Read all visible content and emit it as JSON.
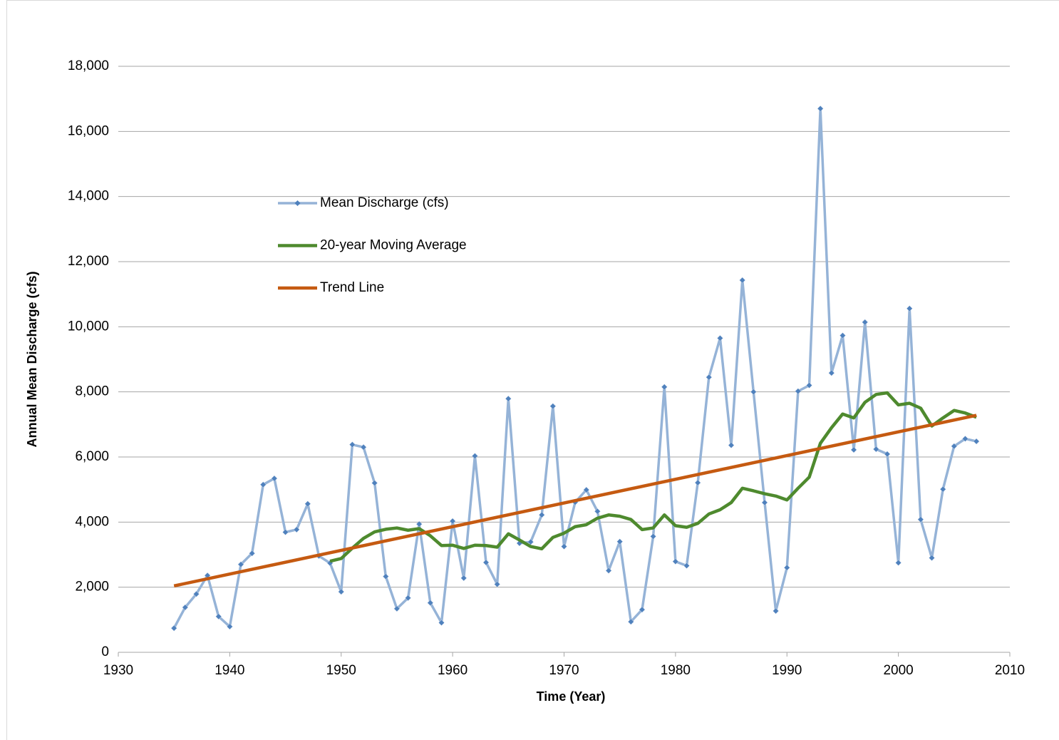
{
  "chart_data": {
    "type": "line",
    "xlabel": "Time (Year)",
    "ylabel": "Annual Mean Discharge (cfs)",
    "x": [
      1935,
      1936,
      1937,
      1938,
      1939,
      1940,
      1941,
      1942,
      1943,
      1944,
      1945,
      1946,
      1947,
      1948,
      1949,
      1950,
      1951,
      1952,
      1953,
      1954,
      1955,
      1956,
      1957,
      1958,
      1959,
      1960,
      1961,
      1962,
      1963,
      1964,
      1965,
      1966,
      1967,
      1968,
      1969,
      1970,
      1971,
      1972,
      1973,
      1974,
      1975,
      1976,
      1977,
      1978,
      1979,
      1980,
      1981,
      1982,
      1983,
      1984,
      1985,
      1986,
      1987,
      1988,
      1989,
      1990,
      1991,
      1992,
      1993,
      1994,
      1995,
      1996,
      1997,
      1998,
      1999,
      2000,
      2001,
      2002,
      2003,
      2004,
      2005,
      2006,
      2007
    ],
    "series": [
      {
        "name": "Mean Discharge (cfs)",
        "color": "#95b3d7",
        "marker_color": "#4f81bd",
        "marker": "diamond",
        "values": [
          742,
          1380,
          1790,
          2360,
          1100,
          790,
          2700,
          3040,
          5150,
          5340,
          3690,
          3770,
          4560,
          2960,
          2740,
          1860,
          6380,
          6300,
          5200,
          2330,
          1340,
          1670,
          3940,
          1520,
          910,
          4030,
          2280,
          6030,
          2760,
          2090,
          7790,
          3350,
          3390,
          4220,
          7560,
          3250,
          4610,
          4990,
          4330,
          2510,
          3400,
          940,
          1310,
          3560,
          8150,
          2790,
          2660,
          5210,
          8450,
          9650,
          6360,
          11430,
          8000,
          4600,
          1270,
          2600,
          8020,
          8200,
          16700,
          8580,
          9730,
          6220,
          10140,
          6240,
          6090,
          2750,
          10560,
          4080,
          2900,
          5010,
          6330,
          6560,
          6480
        ]
      },
      {
        "name": "20-year Moving Average",
        "color": "#4e8a2e",
        "values": [
          null,
          null,
          null,
          null,
          null,
          null,
          null,
          null,
          null,
          null,
          null,
          null,
          null,
          null,
          2800,
          2880,
          3200,
          3500,
          3700,
          3780,
          3820,
          3750,
          3800,
          3580,
          3280,
          3290,
          3190,
          3290,
          3280,
          3230,
          3640,
          3450,
          3250,
          3180,
          3530,
          3660,
          3860,
          3920,
          4120,
          4220,
          4180,
          4080,
          3770,
          3820,
          4220,
          3890,
          3840,
          3960,
          4250,
          4380,
          4600,
          5040,
          4960,
          4870,
          4800,
          4680,
          5040,
          5380,
          6420,
          6900,
          7320,
          7200,
          7680,
          7920,
          7970,
          7600,
          7650,
          7500,
          6950,
          7200,
          7430,
          7350,
          7220
        ]
      },
      {
        "name": "Trend Line",
        "color": "#c55a11",
        "x": [
          1935,
          2007
        ],
        "values": [
          2040,
          7280
        ]
      }
    ],
    "xlim": [
      1930,
      2010
    ],
    "xticks": [
      1930,
      1940,
      1950,
      1960,
      1970,
      1980,
      1990,
      2000,
      2010
    ],
    "ylim": [
      0,
      18000
    ],
    "yticks": [
      0,
      {
        "value": 2000,
        "label": "2,000"
      },
      {
        "value": 4000,
        "label": "4,000"
      },
      {
        "value": 6000,
        "label": "6,000"
      },
      {
        "value": 8000,
        "label": "8,000"
      },
      {
        "value": 10000,
        "label": "10,000"
      },
      {
        "value": 12000,
        "label": "12,000"
      },
      {
        "value": 14000,
        "label": "14,000"
      },
      {
        "value": 16000,
        "label": "16,000"
      },
      {
        "value": 18000,
        "label": "18,000"
      }
    ],
    "grid": true
  }
}
